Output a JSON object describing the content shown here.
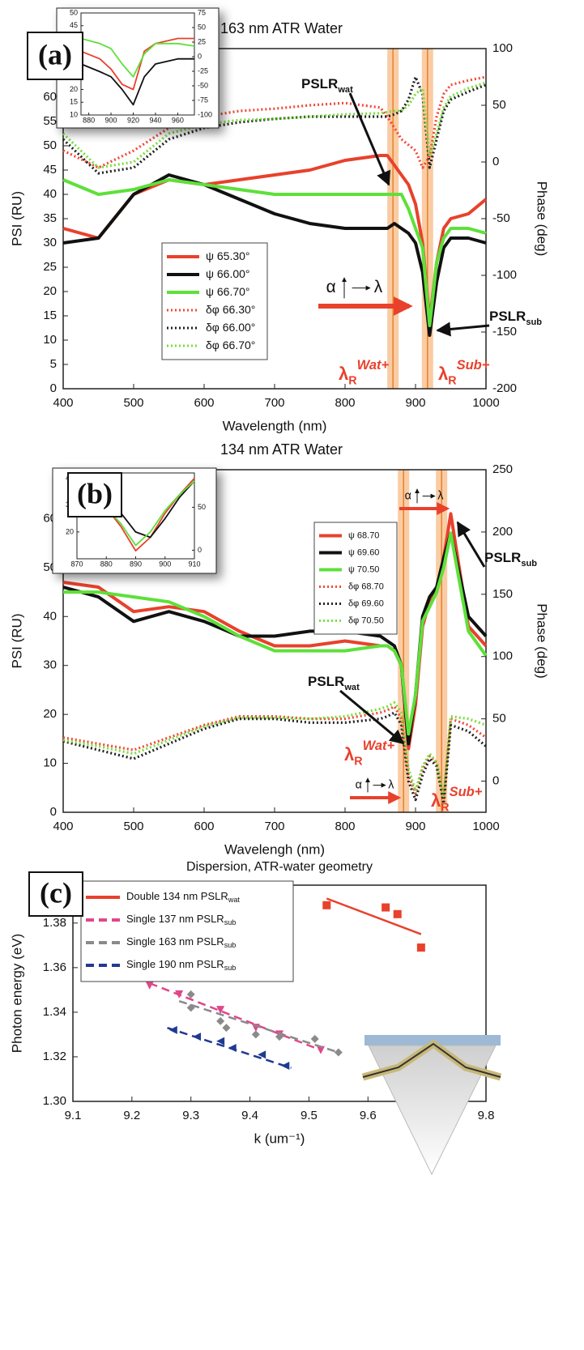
{
  "chart_data": [
    {
      "type": "line",
      "panel_label": "(a)",
      "title": "163 nm ATR Water",
      "xlabel": "Wavelength (nm)",
      "ylabel": "PSI (RU)",
      "y2label": "Phase (deg)",
      "xlim": [
        400,
        1000
      ],
      "ylim": [
        0,
        70
      ],
      "y2lim": [
        -200,
        100
      ],
      "xticks": [
        400,
        500,
        600,
        700,
        800,
        900,
        1000
      ],
      "yticks": [
        0,
        5,
        10,
        15,
        20,
        25,
        30,
        35,
        40,
        45,
        50,
        55,
        60
      ],
      "y2ticks": [
        -200,
        -150,
        -100,
        -50,
        0,
        50,
        100
      ],
      "bands": [
        868,
        917
      ],
      "band_color": "#f5a35a",
      "arrow_labels": [
        "α",
        "λ"
      ],
      "annotations": [
        {
          "text": "PSLR",
          "sub": "wat"
        },
        {
          "text": "PSLR",
          "sub": "sub"
        },
        {
          "text": "λ",
          "sub": "R",
          "sup": "Wat+"
        },
        {
          "text": "λ",
          "sub": "R",
          "sup": "Sub+"
        }
      ],
      "x": [
        400,
        450,
        500,
        550,
        600,
        650,
        700,
        750,
        800,
        850,
        860,
        870,
        880,
        890,
        900,
        910,
        920,
        930,
        940,
        950,
        975,
        1000
      ],
      "series": [
        {
          "name": "ψ 65.30°",
          "color": "#e8412c",
          "dash": "solid",
          "values": [
            33,
            31,
            40,
            43,
            42,
            43,
            44,
            45,
            47,
            48,
            48,
            46,
            44,
            42,
            38,
            30,
            14,
            26,
            33,
            35,
            36,
            39
          ]
        },
        {
          "name": "ψ 66.00°",
          "color": "#111111",
          "dash": "solid",
          "values": [
            30,
            31,
            40,
            44,
            42,
            39,
            36,
            34,
            33,
            33,
            33,
            34,
            33,
            32,
            30,
            24,
            11,
            22,
            29,
            31,
            31,
            30
          ]
        },
        {
          "name": "ψ 66.70°",
          "color": "#5ee03a",
          "dash": "solid",
          "values": [
            43,
            40,
            41,
            43,
            42,
            41,
            40,
            40,
            40,
            40,
            40,
            40,
            40,
            37,
            33,
            29,
            13,
            26,
            31,
            33,
            33,
            32
          ]
        },
        {
          "name": "δφ 66.30°",
          "color": "#f04a38",
          "dash": "dotted",
          "axis": "y2",
          "values": [
            10,
            -5,
            10,
            30,
            40,
            45,
            47,
            50,
            52,
            48,
            40,
            30,
            20,
            15,
            10,
            -5,
            5,
            40,
            60,
            68,
            72,
            75
          ]
        },
        {
          "name": "δφ 66.00°",
          "color": "#222222",
          "dash": "dotted",
          "axis": "y2",
          "values": [
            20,
            -10,
            -5,
            20,
            30,
            35,
            38,
            40,
            40,
            40,
            40,
            42,
            45,
            55,
            75,
            60,
            -5,
            20,
            45,
            55,
            62,
            68
          ]
        },
        {
          "name": "δφ 66.70°",
          "color": "#78df3c",
          "dash": "dotted",
          "axis": "y2",
          "values": [
            25,
            -5,
            0,
            25,
            33,
            37,
            38,
            40,
            42,
            43,
            44,
            45,
            45,
            50,
            60,
            65,
            5,
            25,
            48,
            58,
            65,
            70
          ]
        }
      ],
      "inset": {
        "type": "line",
        "xlim": [
          873,
          975
        ],
        "ylim": [
          10,
          50
        ],
        "y2lim": [
          -100,
          75
        ],
        "xticks": [
          880,
          900,
          920,
          940,
          960
        ],
        "yticks": [
          10,
          15,
          20,
          25,
          30,
          35,
          40,
          45,
          50
        ],
        "y2ticks": [
          -100,
          -75,
          -50,
          -25,
          0,
          25,
          50,
          75
        ],
        "x": [
          873,
          890,
          900,
          910,
          920,
          930,
          940,
          960,
          975
        ],
        "series": [
          {
            "color": "#e8412c",
            "dash": "solid",
            "values": [
              35,
              32,
              28,
              22,
              20,
              35,
              38,
              40,
              40
            ]
          },
          {
            "color": "#111111",
            "dash": "solid",
            "values": [
              30,
              27,
              25,
              20,
              14,
              25,
              30,
              32,
              32
            ]
          },
          {
            "color": "#5ee03a",
            "dash": "solid",
            "values": [
              40,
              38,
              36,
              30,
              25,
              34,
              38,
              38,
              37
            ]
          }
        ]
      }
    },
    {
      "type": "line",
      "panel_label": "(b)",
      "title": "134 nm ATR Water",
      "xlabel": "Wavelengh (nm)",
      "ylabel": "PSI (RU)",
      "y2label": "Phase (deg)",
      "xlim": [
        400,
        1000
      ],
      "ylim": [
        0,
        70
      ],
      "y2lim": [
        -25,
        250
      ],
      "xticks": [
        400,
        500,
        600,
        700,
        800,
        900,
        1000
      ],
      "yticks": [
        0,
        10,
        20,
        30,
        40,
        50,
        60
      ],
      "y2ticks": [
        0,
        50,
        100,
        150,
        200,
        250
      ],
      "bands": [
        883,
        937
      ],
      "band_color": "#f5a35a",
      "arrow_labels": [
        "α",
        "λ"
      ],
      "annotations": [
        {
          "text": "PSLR",
          "sub": "sub"
        },
        {
          "text": "PSLR",
          "sub": "wat"
        },
        {
          "text": "λ",
          "sub": "R",
          "sup": "Wat+"
        },
        {
          "text": "λ",
          "sub": "R",
          "sup": "Sub+"
        }
      ],
      "x": [
        400,
        450,
        500,
        550,
        600,
        650,
        700,
        750,
        800,
        850,
        860,
        870,
        880,
        890,
        900,
        910,
        920,
        930,
        940,
        950,
        975,
        1000
      ],
      "series": [
        {
          "name": "ψ 68.70",
          "color": "#e8412c",
          "dash": "solid",
          "values": [
            47,
            46,
            41,
            42,
            41,
            37,
            34,
            34,
            35,
            34,
            34,
            33,
            30,
            13,
            22,
            38,
            43,
            45,
            52,
            61,
            38,
            34
          ]
        },
        {
          "name": "ψ 69.60",
          "color": "#111111",
          "dash": "solid",
          "values": [
            46,
            44,
            39,
            41,
            39,
            36,
            36,
            37,
            37,
            36,
            35,
            34,
            30,
            14,
            24,
            40,
            44,
            46,
            52,
            57,
            40,
            36
          ]
        },
        {
          "name": "ψ 70.50",
          "color": "#5ee03a",
          "dash": "solid",
          "values": [
            45,
            45,
            44,
            43,
            40,
            36,
            33,
            33,
            33,
            34,
            34,
            33,
            30,
            16,
            24,
            39,
            42,
            45,
            50,
            57,
            37,
            32
          ]
        },
        {
          "name": "δφ 68.70",
          "color": "#f04a38",
          "dash": "dotted",
          "axis": "y2",
          "values": [
            35,
            30,
            25,
            35,
            45,
            52,
            52,
            50,
            50,
            55,
            57,
            60,
            50,
            5,
            -10,
            10,
            20,
            15,
            -15,
            50,
            45,
            35
          ]
        },
        {
          "name": "δφ 69.60",
          "color": "#222222",
          "dash": "dotted",
          "axis": "y2",
          "values": [
            32,
            25,
            18,
            30,
            42,
            50,
            50,
            47,
            47,
            50,
            52,
            55,
            45,
            0,
            -15,
            5,
            18,
            12,
            -18,
            45,
            40,
            28
          ]
        },
        {
          "name": "δφ 70.50",
          "color": "#78df3c",
          "dash": "dotted",
          "axis": "y2",
          "values": [
            33,
            28,
            22,
            33,
            44,
            51,
            51,
            50,
            52,
            58,
            60,
            63,
            55,
            10,
            -8,
            12,
            22,
            15,
            -12,
            52,
            50,
            45
          ]
        }
      ],
      "inset": {
        "type": "line",
        "xlim": [
          870,
          910
        ],
        "ylim": [
          10,
          42
        ],
        "y2lim": [
          -10,
          90
        ],
        "xticks": [
          870,
          880,
          890,
          900,
          910
        ],
        "yticks": [
          20,
          30,
          40
        ],
        "y2ticks": [
          0,
          50
        ],
        "x": [
          870,
          875,
          880,
          885,
          890,
          895,
          900,
          905,
          910
        ],
        "series": [
          {
            "color": "#e8412c",
            "dash": "solid",
            "values": [
              33,
              32,
              29,
              22,
              13,
              18,
              27,
              34,
              40
            ]
          },
          {
            "color": "#111111",
            "dash": "solid",
            "values": [
              33,
              33,
              31,
              27,
              20,
              18,
              25,
              33,
              39
            ]
          },
          {
            "color": "#5ee03a",
            "dash": "solid",
            "values": [
              34,
              32,
              29,
              23,
              15,
              20,
              28,
              34,
              39
            ]
          }
        ]
      }
    },
    {
      "type": "scatter",
      "panel_label": "(c)",
      "title": "Dispersion, ATR-water geometry",
      "xlabel": "k (um⁻¹)",
      "ylabel": "Photon energy (eV)",
      "xlim": [
        9.1,
        9.8
      ],
      "ylim": [
        1.3,
        1.397
      ],
      "xticks": [
        9.1,
        9.2,
        9.3,
        9.4,
        9.5,
        9.6,
        9.7,
        9.8
      ],
      "yticks": [
        {
          "value": 1.3,
          "label": "1.30"
        },
        1.32,
        1.34,
        1.36,
        1.38
      ],
      "series": [
        {
          "name": "Double 134 nm PSLR",
          "name_sub": "wat",
          "color": "#e8412c",
          "marker": "square",
          "dash": "solid",
          "x": [
            9.53,
            9.63,
            9.65,
            9.69
          ],
          "values": [
            1.388,
            1.387,
            1.384,
            1.369
          ],
          "fit_x": [
            9.53,
            9.69
          ],
          "fit_y": [
            1.391,
            1.375
          ]
        },
        {
          "name": "Single 137 nm PSLR",
          "name_sub": "sub",
          "color": "#e0468a",
          "marker": "triangle",
          "dash": "dashed",
          "x": [
            9.23,
            9.28,
            9.35,
            9.41,
            9.45,
            9.52
          ],
          "values": [
            1.352,
            1.348,
            1.341,
            1.333,
            1.33,
            1.323
          ],
          "fit_x": [
            9.23,
            9.52
          ],
          "fit_y": [
            1.353,
            1.323
          ]
        },
        {
          "name": "Single 163 nm PSLR",
          "name_sub": "sub",
          "color": "#8a8a8a",
          "marker": "diamond",
          "dash": "dashed",
          "x": [
            9.3,
            9.3,
            9.35,
            9.36,
            9.41,
            9.45,
            9.51,
            9.55
          ],
          "values": [
            1.348,
            1.342,
            1.336,
            1.333,
            1.33,
            1.329,
            1.328,
            1.322
          ],
          "fit_x": [
            9.28,
            9.55
          ],
          "fit_y": [
            1.345,
            1.322
          ]
        },
        {
          "name": "Single 190 nm PSLR",
          "name_sub": "sub",
          "color": "#1f3a93",
          "marker": "left-triangle",
          "dash": "dashed",
          "x": [
            9.27,
            9.31,
            9.35,
            9.37,
            9.42,
            9.46
          ],
          "values": [
            1.332,
            1.329,
            1.327,
            1.324,
            1.321,
            1.316
          ],
          "fit_x": [
            9.26,
            9.47
          ],
          "fit_y": [
            1.333,
            1.315
          ]
        }
      ]
    }
  ]
}
